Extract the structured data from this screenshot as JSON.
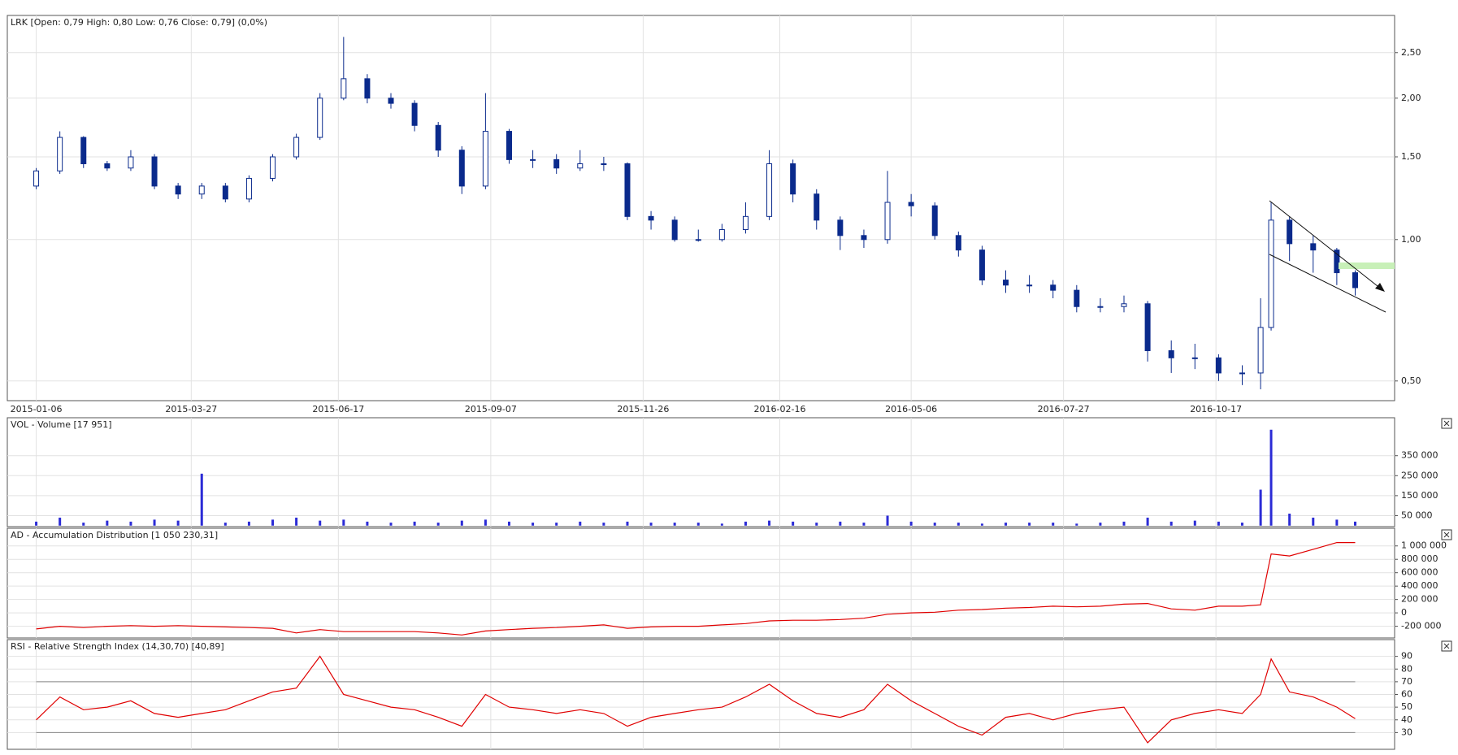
{
  "chart_data": [
    {
      "type": "candlestick",
      "title": "LRK [Open: 0,79  High: 0,80  Low: 0,76  Close: 0,79] (0,0%)",
      "color": "#0a2a8c",
      "log": true,
      "grid": true,
      "x": [
        0,
        9,
        18,
        27,
        36,
        45,
        54,
        63,
        72,
        81,
        90,
        99,
        108,
        117,
        126,
        135,
        144,
        153,
        162,
        171,
        180,
        189,
        198,
        207,
        216,
        225,
        234,
        243,
        252,
        261,
        270,
        279,
        288,
        297,
        306,
        315,
        324,
        333,
        342,
        351,
        360,
        369,
        378,
        387,
        396,
        405,
        414,
        423,
        432,
        441,
        450,
        459,
        466,
        470,
        477,
        486,
        495,
        502
      ],
      "open": [
        1.3,
        1.4,
        1.65,
        1.45,
        1.42,
        1.5,
        1.3,
        1.25,
        1.3,
        1.22,
        1.35,
        1.5,
        1.65,
        2.0,
        2.2,
        2.0,
        1.95,
        1.75,
        1.55,
        1.3,
        1.7,
        1.48,
        1.48,
        1.42,
        1.45,
        1.45,
        1.12,
        1.1,
        1.0,
        1.0,
        1.05,
        1.12,
        1.45,
        1.25,
        1.1,
        1.02,
        1.0,
        1.2,
        1.18,
        1.02,
        0.95,
        0.82,
        0.8,
        0.8,
        0.78,
        0.72,
        0.72,
        0.73,
        0.58,
        0.56,
        0.56,
        0.52,
        0.52,
        0.65,
        1.1,
        0.98,
        0.95,
        0.85
      ],
      "high": [
        1.42,
        1.7,
        1.66,
        1.47,
        1.55,
        1.52,
        1.32,
        1.32,
        1.32,
        1.37,
        1.52,
        1.68,
        2.05,
        2.7,
        2.25,
        2.05,
        1.98,
        1.78,
        1.58,
        2.05,
        1.72,
        1.55,
        1.52,
        1.55,
        1.5,
        1.46,
        1.15,
        1.12,
        1.05,
        1.08,
        1.2,
        1.55,
        1.48,
        1.28,
        1.12,
        1.05,
        1.4,
        1.25,
        1.2,
        1.04,
        0.97,
        0.86,
        0.84,
        0.82,
        0.8,
        0.75,
        0.76,
        0.74,
        0.61,
        0.6,
        0.57,
        0.54,
        0.75,
        1.2,
        1.12,
        1.02,
        0.96,
        0.86
      ],
      "low": [
        1.28,
        1.38,
        1.42,
        1.4,
        1.4,
        1.28,
        1.22,
        1.22,
        1.2,
        1.2,
        1.33,
        1.48,
        1.63,
        1.98,
        1.95,
        1.9,
        1.7,
        1.5,
        1.25,
        1.28,
        1.45,
        1.42,
        1.38,
        1.4,
        1.4,
        1.1,
        1.05,
        0.99,
        0.99,
        0.99,
        1.03,
        1.1,
        1.2,
        1.05,
        0.95,
        0.96,
        0.98,
        1.12,
        1.0,
        0.92,
        0.8,
        0.77,
        0.77,
        0.75,
        0.7,
        0.7,
        0.7,
        0.55,
        0.52,
        0.53,
        0.5,
        0.49,
        0.48,
        0.64,
        0.9,
        0.85,
        0.8,
        0.76
      ],
      "close": [
        1.4,
        1.65,
        1.45,
        1.42,
        1.5,
        1.3,
        1.25,
        1.3,
        1.22,
        1.35,
        1.5,
        1.65,
        2.0,
        2.2,
        2.0,
        1.95,
        1.75,
        1.55,
        1.3,
        1.7,
        1.48,
        1.48,
        1.42,
        1.45,
        1.45,
        1.12,
        1.1,
        1.0,
        1.0,
        1.05,
        1.12,
        1.45,
        1.25,
        1.1,
        1.02,
        1.0,
        1.2,
        1.18,
        1.02,
        0.95,
        0.82,
        0.8,
        0.8,
        0.78,
        0.72,
        0.72,
        0.73,
        0.58,
        0.56,
        0.56,
        0.52,
        0.52,
        0.65,
        1.1,
        0.98,
        0.95,
        0.85,
        0.79
      ],
      "xlim": [
        -11,
        517
      ],
      "xticks": [
        {
          "value": 0,
          "label": "2015-01-06"
        },
        {
          "value": 59,
          "label": "2015-03-27"
        },
        {
          "value": 115,
          "label": "2015-06-17"
        },
        {
          "value": 173,
          "label": "2015-09-07"
        },
        {
          "value": 231,
          "label": "2015-11-26"
        },
        {
          "value": 283,
          "label": "2016-02-16"
        },
        {
          "value": 333,
          "label": "2016-05-06"
        },
        {
          "value": 391,
          "label": "2016-07-27"
        },
        {
          "value": 449,
          "label": "2016-10-17"
        }
      ],
      "ylim": [
        0.454,
        3.0
      ],
      "yticks": [
        {
          "value": 0.5,
          "label": "0,50"
        },
        {
          "value": 1.0,
          "label": "1,00"
        },
        {
          "value": 1.5,
          "label": "1,50"
        },
        {
          "value": 2.0,
          "label": "2,00"
        },
        {
          "value": 2.5,
          "label": "2,50"
        }
      ]
    },
    {
      "type": "bar",
      "title": "VOL - Volume [17 951]",
      "color": "#2b2bd6",
      "grid": true,
      "x": [
        0,
        9,
        18,
        27,
        36,
        45,
        54,
        63,
        72,
        81,
        90,
        99,
        108,
        117,
        126,
        135,
        144,
        153,
        162,
        171,
        180,
        189,
        198,
        207,
        216,
        225,
        234,
        243,
        252,
        261,
        270,
        279,
        288,
        297,
        306,
        315,
        324,
        333,
        342,
        351,
        360,
        369,
        378,
        387,
        396,
        405,
        414,
        423,
        432,
        441,
        450,
        459,
        466,
        470,
        477,
        486,
        495,
        502
      ],
      "values": [
        20000,
        40000,
        15000,
        25000,
        20000,
        30000,
        25000,
        260000,
        15000,
        20000,
        30000,
        40000,
        25000,
        30000,
        20000,
        15000,
        20000,
        15000,
        25000,
        30000,
        20000,
        15000,
        15000,
        20000,
        15000,
        20000,
        15000,
        15000,
        15000,
        10000,
        20000,
        25000,
        20000,
        15000,
        20000,
        15000,
        50000,
        20000,
        15000,
        15000,
        10000,
        15000,
        15000,
        15000,
        10000,
        15000,
        20000,
        40000,
        20000,
        25000,
        20000,
        15000,
        180000,
        480000,
        60000,
        40000,
        30000,
        20000
      ],
      "xlim": [
        -11,
        517
      ],
      "ylim": [
        -5000,
        540000
      ],
      "yticks": [
        {
          "value": 50000,
          "label": "50 000"
        },
        {
          "value": 150000,
          "label": "150 000"
        },
        {
          "value": 250000,
          "label": "250 000"
        },
        {
          "value": 350000,
          "label": "350 000"
        }
      ]
    },
    {
      "type": "line",
      "title": "AD - Accumulation Distribution [1 050 230,31]",
      "color": "#e00000",
      "grid": true,
      "x": [
        0,
        9,
        18,
        27,
        36,
        45,
        54,
        63,
        72,
        81,
        90,
        99,
        108,
        117,
        126,
        135,
        144,
        153,
        162,
        171,
        180,
        189,
        198,
        207,
        216,
        225,
        234,
        243,
        252,
        261,
        270,
        279,
        288,
        297,
        306,
        315,
        324,
        333,
        342,
        351,
        360,
        369,
        378,
        387,
        396,
        405,
        414,
        423,
        432,
        441,
        450,
        459,
        466,
        470,
        477,
        486,
        495,
        502
      ],
      "values": [
        -240000,
        -200000,
        -220000,
        -200000,
        -190000,
        -200000,
        -190000,
        -200000,
        -210000,
        -220000,
        -230000,
        -300000,
        -250000,
        -280000,
        -280000,
        -280000,
        -280000,
        -300000,
        -330000,
        -270000,
        -250000,
        -230000,
        -220000,
        -200000,
        -180000,
        -230000,
        -210000,
        -200000,
        -200000,
        -180000,
        -160000,
        -120000,
        -110000,
        -110000,
        -100000,
        -80000,
        -20000,
        0,
        10000,
        40000,
        50000,
        70000,
        80000,
        100000,
        90000,
        100000,
        130000,
        140000,
        60000,
        40000,
        100000,
        100000,
        120000,
        880000,
        850000,
        950000,
        1050000,
        1050000
      ],
      "xlim": [
        -11,
        517
      ],
      "ylim": [
        -375000,
        1264000
      ],
      "yticks": [
        {
          "value": -200000,
          "label": "-200 000"
        },
        0,
        {
          "value": 200000,
          "label": "200 000"
        },
        {
          "value": 400000,
          "label": "400 000"
        },
        {
          "value": 600000,
          "label": "600 000"
        },
        {
          "value": 800000,
          "label": "800 000"
        },
        {
          "value": 1000000,
          "label": "1 000 000"
        }
      ]
    },
    {
      "type": "line",
      "title": "RSI - Relative Strength Index (14,30,70) [40,89]",
      "color": "#e00000",
      "grid": true,
      "levels": [
        30,
        70
      ],
      "x": [
        0,
        9,
        18,
        27,
        36,
        45,
        54,
        63,
        72,
        81,
        90,
        99,
        108,
        117,
        126,
        135,
        144,
        153,
        162,
        171,
        180,
        189,
        198,
        207,
        216,
        225,
        234,
        243,
        252,
        261,
        270,
        279,
        288,
        297,
        306,
        315,
        324,
        333,
        342,
        351,
        360,
        369,
        378,
        387,
        396,
        405,
        414,
        423,
        432,
        441,
        450,
        459,
        466,
        470,
        477,
        486,
        495,
        502
      ],
      "values": [
        40,
        58,
        48,
        50,
        55,
        45,
        42,
        45,
        48,
        55,
        62,
        65,
        90,
        60,
        55,
        50,
        48,
        42,
        35,
        60,
        50,
        48,
        45,
        48,
        45,
        35,
        42,
        45,
        48,
        50,
        58,
        68,
        55,
        45,
        42,
        48,
        68,
        55,
        45,
        35,
        28,
        42,
        45,
        40,
        45,
        48,
        50,
        22,
        40,
        45,
        48,
        45,
        60,
        88,
        62,
        58,
        50,
        41
      ],
      "xlim": [
        -11,
        517
      ],
      "ylim": [
        16.8,
        103.2
      ],
      "yticks": [
        30,
        40,
        50,
        60,
        70,
        80,
        90
      ]
    }
  ]
}
